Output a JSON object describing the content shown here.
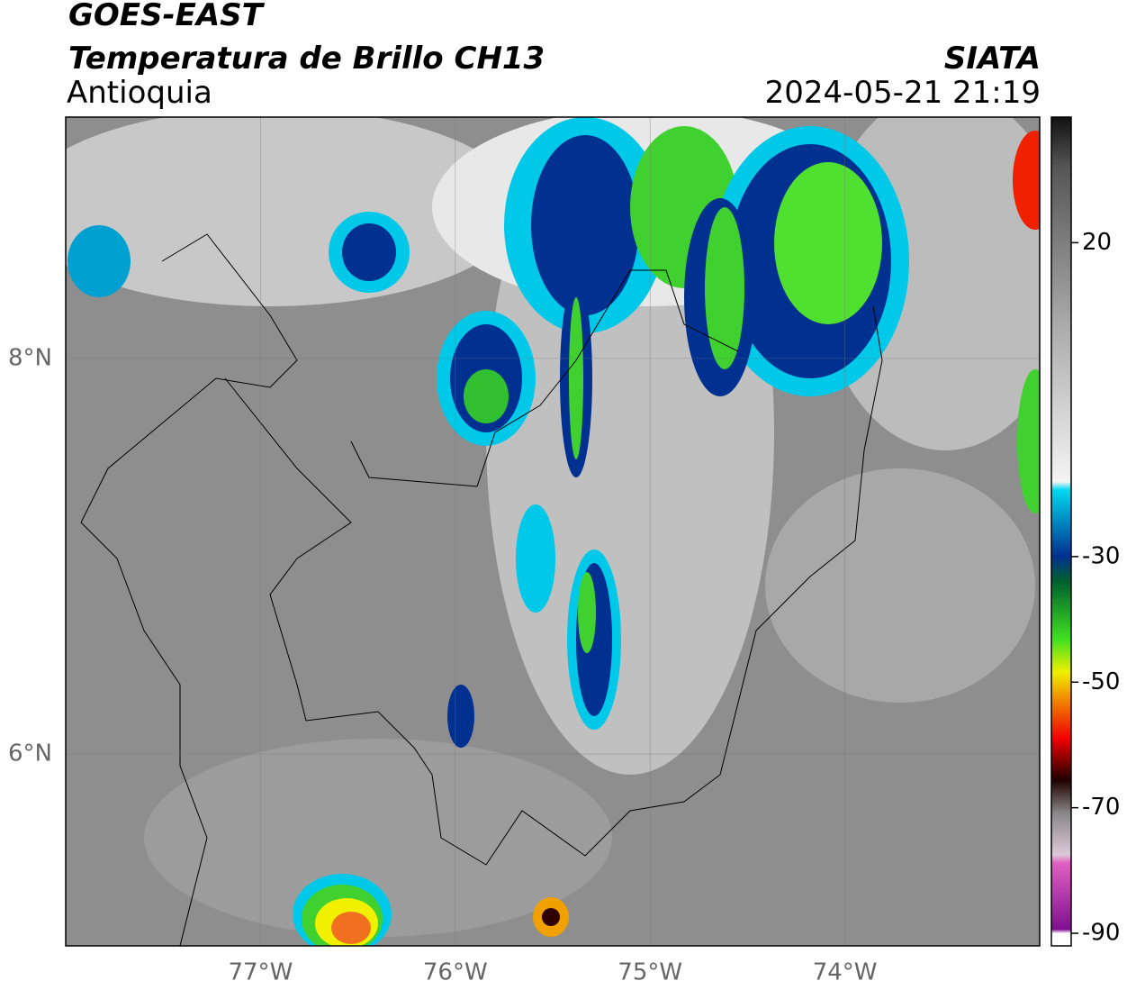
{
  "header": {
    "satellite": "GOES-EAST",
    "product": "Temperatura de Brillo CH13",
    "region": "Antioquia",
    "organization": "SIATA",
    "datetime": "2024-05-21 21:19"
  },
  "map": {
    "lon_lim": [
      -78.0,
      -73.0
    ],
    "lat_lim": [
      5.03,
      9.22
    ],
    "lon_ticks": [
      {
        "value": -77,
        "label": "77°W"
      },
      {
        "value": -76,
        "label": "76°W"
      },
      {
        "value": -75,
        "label": "75°W"
      },
      {
        "value": -74,
        "label": "74°W"
      }
    ],
    "lat_ticks": [
      {
        "value": 8,
        "label": "8°N"
      },
      {
        "value": 6,
        "label": "6°N"
      }
    ]
  },
  "colorbar": {
    "lim": [
      -92,
      40
    ],
    "ticks": [
      20,
      -30,
      -50,
      -70,
      -90
    ]
  }
}
